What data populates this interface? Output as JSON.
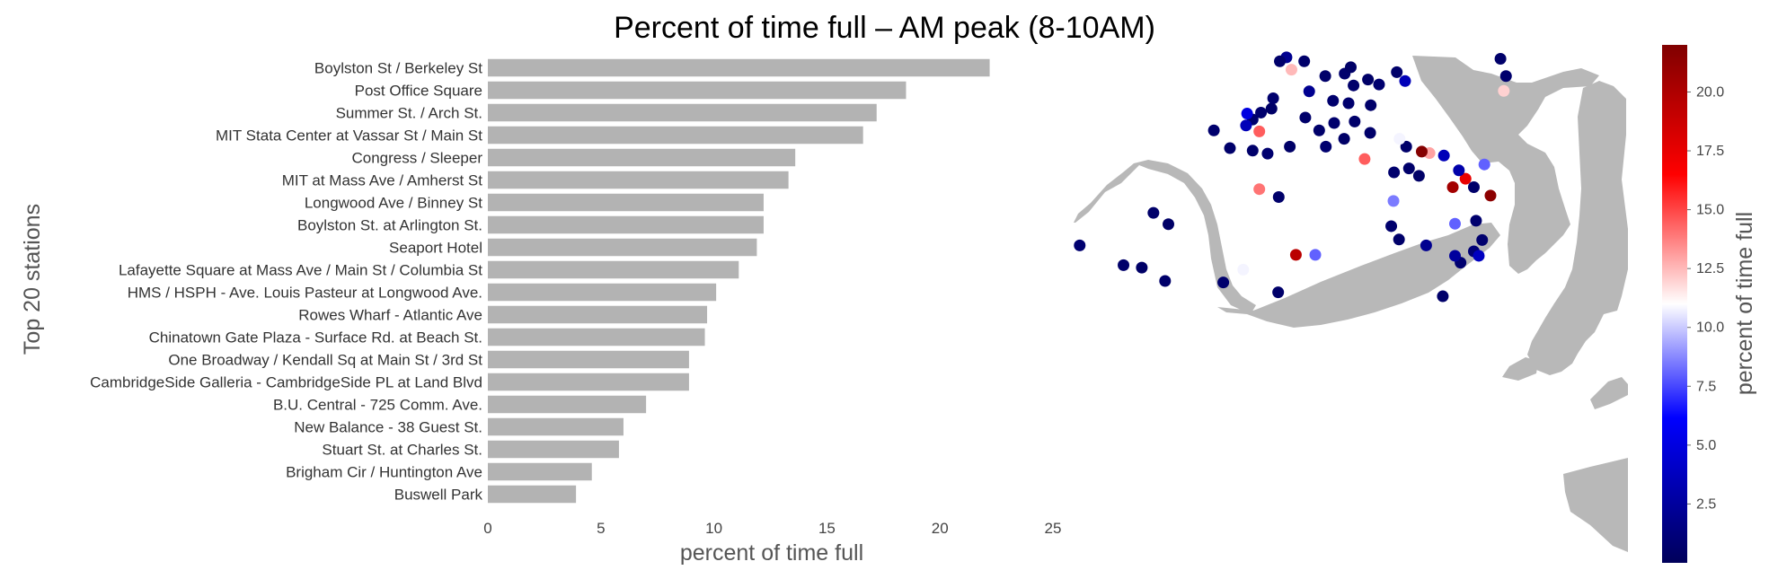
{
  "chart_data": [
    {
      "type": "bar",
      "orientation": "horizontal",
      "title": "Percent of time full – AM peak (8-10AM)",
      "xlabel": "percent of time full",
      "ylabel": "Top 20 stations",
      "xlim": [
        0,
        25
      ],
      "xticks": [
        "0",
        "5",
        "10",
        "15",
        "20",
        "25"
      ],
      "bar_color": "#b3b3b3",
      "grid": false,
      "categories": [
        "Boylston St / Berkeley St",
        "Post Office Square",
        "Summer St. / Arch St.",
        "MIT Stata Center at Vassar St / Main St",
        "Congress / Sleeper",
        "MIT at Mass Ave / Amherst St",
        "Longwood Ave / Binney St",
        "Boylston St. at Arlington St.",
        "Seaport Hotel",
        "Lafayette Square at Mass Ave / Main St / Columbia St",
        "HMS / HSPH - Ave. Louis Pasteur at Longwood Ave.",
        "Rowes Wharf - Atlantic Ave",
        "Chinatown Gate Plaza - Surface Rd. at Beach St.",
        "One Broadway / Kendall Sq at Main St / 3rd St",
        "CambridgeSide Galleria - CambridgeSide PL at Land Blvd",
        "B.U. Central - 725 Comm. Ave.",
        "New Balance - 38 Guest St.",
        "Stuart St. at Charles St.",
        "Brigham Cir / Huntington Ave",
        "Buswell Park"
      ],
      "values": [
        22.2,
        18.5,
        17.2,
        16.6,
        13.6,
        13.3,
        12.2,
        12.2,
        11.9,
        11.1,
        10.1,
        9.7,
        9.6,
        8.9,
        8.9,
        7.0,
        6.0,
        5.8,
        4.6,
        3.9
      ]
    },
    {
      "type": "scatter",
      "subtype": "geographic map",
      "colorbar_label": "percent of time full",
      "colorbar_range": [
        0,
        22
      ],
      "colorbar_ticks": [
        "2.5",
        "5.0",
        "7.5",
        "10.0",
        "12.5",
        "15.0",
        "17.5",
        "20.0"
      ],
      "colormap": [
        "#00005a",
        "#0000ff",
        "#ffffff",
        "#ff0000",
        "#800000"
      ],
      "land_color": "#b8b8b8",
      "points": [
        {
          "lon": 0.253,
          "lat": 0.845,
          "value": 0.7
        },
        {
          "lon": 0.144,
          "lat": 0.678,
          "value": 0.6
        },
        {
          "lon": 0.171,
          "lat": 0.655,
          "value": 0.5
        },
        {
          "lon": 0.011,
          "lat": 0.612,
          "value": 0.8
        },
        {
          "lon": 0.09,
          "lat": 0.572,
          "value": 0.6
        },
        {
          "lon": 0.123,
          "lat": 0.567,
          "value": 0.5
        },
        {
          "lon": 0.165,
          "lat": 0.54,
          "value": 0.6
        },
        {
          "lon": 0.27,
          "lat": 0.537,
          "value": 0.7
        },
        {
          "lon": 0.306,
          "lat": 0.563,
          "value": 10.8
        },
        {
          "lon": 0.369,
          "lat": 0.517,
          "value": 0.6
        },
        {
          "lon": 0.401,
          "lat": 0.593,
          "value": 19.5
        },
        {
          "lon": 0.436,
          "lat": 0.593,
          "value": 8.0
        },
        {
          "lon": 0.573,
          "lat": 0.651,
          "value": 0.7
        },
        {
          "lon": 0.577,
          "lat": 0.702,
          "value": 8.5
        },
        {
          "lon": 0.666,
          "lat": 0.509,
          "value": 0.6
        },
        {
          "lon": 0.587,
          "lat": 0.624,
          "value": 0.6
        },
        {
          "lon": 0.636,
          "lat": 0.612,
          "value": 2.0
        },
        {
          "lon": 0.698,
          "lat": 0.577,
          "value": 0.8
        },
        {
          "lon": 0.722,
          "lat": 0.6,
          "value": 1.0
        },
        {
          "lon": 0.688,
          "lat": 0.591,
          "value": 2.5
        },
        {
          "lon": 0.737,
          "lat": 0.623,
          "value": 0.7
        },
        {
          "lon": 0.731,
          "lat": 0.591,
          "value": 3.8
        },
        {
          "lon": 0.37,
          "lat": 0.71,
          "value": 0.6
        },
        {
          "lon": 0.335,
          "lat": 0.726,
          "value": 14.0
        },
        {
          "lon": 0.605,
          "lat": 0.768,
          "value": 0.6
        },
        {
          "lon": 0.578,
          "lat": 0.76,
          "value": 0.7
        },
        {
          "lon": 0.752,
          "lat": 0.713,
          "value": 21.5
        },
        {
          "lon": 0.688,
          "lat": 0.656,
          "value": 8.0
        },
        {
          "lon": 0.707,
          "lat": 0.747,
          "value": 17.5
        },
        {
          "lon": 0.684,
          "lat": 0.73,
          "value": 20.5
        },
        {
          "lon": 0.722,
          "lat": 0.73,
          "value": 0.6
        },
        {
          "lon": 0.726,
          "lat": 0.662,
          "value": 0.7
        },
        {
          "lon": 0.695,
          "lat": 0.764,
          "value": 3.0
        },
        {
          "lon": 0.741,
          "lat": 0.776,
          "value": 8.0
        },
        {
          "lon": 0.668,
          "lat": 0.794,
          "value": 3.5
        },
        {
          "lon": 0.642,
          "lat": 0.799,
          "value": 13.0
        },
        {
          "lon": 0.623,
          "lat": 0.753,
          "value": 0.5
        },
        {
          "lon": 0.628,
          "lat": 0.802,
          "value": 21.8
        },
        {
          "lon": 0.6,
          "lat": 0.812,
          "value": 0.6
        },
        {
          "lon": 0.525,
          "lat": 0.787,
          "value": 14.5
        },
        {
          "lon": 0.588,
          "lat": 0.828,
          "value": 10.8
        },
        {
          "lon": 0.535,
          "lat": 0.84,
          "value": 0.6
        },
        {
          "lon": 0.488,
          "lat": 0.828,
          "value": 0.5
        },
        {
          "lon": 0.507,
          "lat": 0.863,
          "value": 0.6
        },
        {
          "lon": 0.47,
          "lat": 0.86,
          "value": 0.7
        },
        {
          "lon": 0.455,
          "lat": 0.812,
          "value": 0.8
        },
        {
          "lon": 0.443,
          "lat": 0.845,
          "value": 0.6
        },
        {
          "lon": 0.39,
          "lat": 0.812,
          "value": 0.5
        },
        {
          "lon": 0.335,
          "lat": 0.843,
          "value": 14.5
        },
        {
          "lon": 0.323,
          "lat": 0.867,
          "value": 0.7
        },
        {
          "lon": 0.323,
          "lat": 0.804,
          "value": 0.6
        },
        {
          "lon": 0.35,
          "lat": 0.798,
          "value": 0.8
        },
        {
          "lon": 0.282,
          "lat": 0.809,
          "value": 0.6
        },
        {
          "lon": 0.338,
          "lat": 0.881,
          "value": 0.7
        },
        {
          "lon": 0.418,
          "lat": 0.871,
          "value": 0.6
        },
        {
          "lon": 0.357,
          "lat": 0.889,
          "value": 0.5
        },
        {
          "lon": 0.36,
          "lat": 0.91,
          "value": 0.7
        },
        {
          "lon": 0.313,
          "lat": 0.879,
          "value": 5.0
        },
        {
          "lon": 0.311,
          "lat": 0.855,
          "value": 3.5
        },
        {
          "lon": 0.425,
          "lat": 0.924,
          "value": 2.0
        },
        {
          "lon": 0.454,
          "lat": 0.955,
          "value": 0.6
        },
        {
          "lon": 0.489,
          "lat": 0.96,
          "value": 0.7
        },
        {
          "lon": 0.505,
          "lat": 0.936,
          "value": 0.6
        },
        {
          "lon": 0.531,
          "lat": 0.948,
          "value": 0.5
        },
        {
          "lon": 0.551,
          "lat": 0.938,
          "value": 0.8
        },
        {
          "lon": 0.598,
          "lat": 0.945,
          "value": 3.5
        },
        {
          "lon": 0.496,
          "lat": 0.9,
          "value": 0.7
        },
        {
          "lon": 0.536,
          "lat": 0.896,
          "value": 0.6
        },
        {
          "lon": 0.468,
          "lat": 0.905,
          "value": 0.7
        },
        {
          "lon": 0.416,
          "lat": 0.985,
          "value": 0.6
        },
        {
          "lon": 0.393,
          "lat": 0.968,
          "value": 12.5
        },
        {
          "lon": 0.384,
          "lat": 0.993,
          "value": 2.0
        },
        {
          "lon": 0.372,
          "lat": 0.985,
          "value": 0.6
        },
        {
          "lon": 0.5,
          "lat": 0.973,
          "value": 0.5
        },
        {
          "lon": 0.583,
          "lat": 0.963,
          "value": 0.6
        },
        {
          "lon": 0.78,
          "lat": 0.955,
          "value": 0.7
        },
        {
          "lon": 0.77,
          "lat": 0.99,
          "value": 0.6
        },
        {
          "lon": 0.776,
          "lat": 0.925,
          "value": 12.0
        }
      ]
    }
  ]
}
